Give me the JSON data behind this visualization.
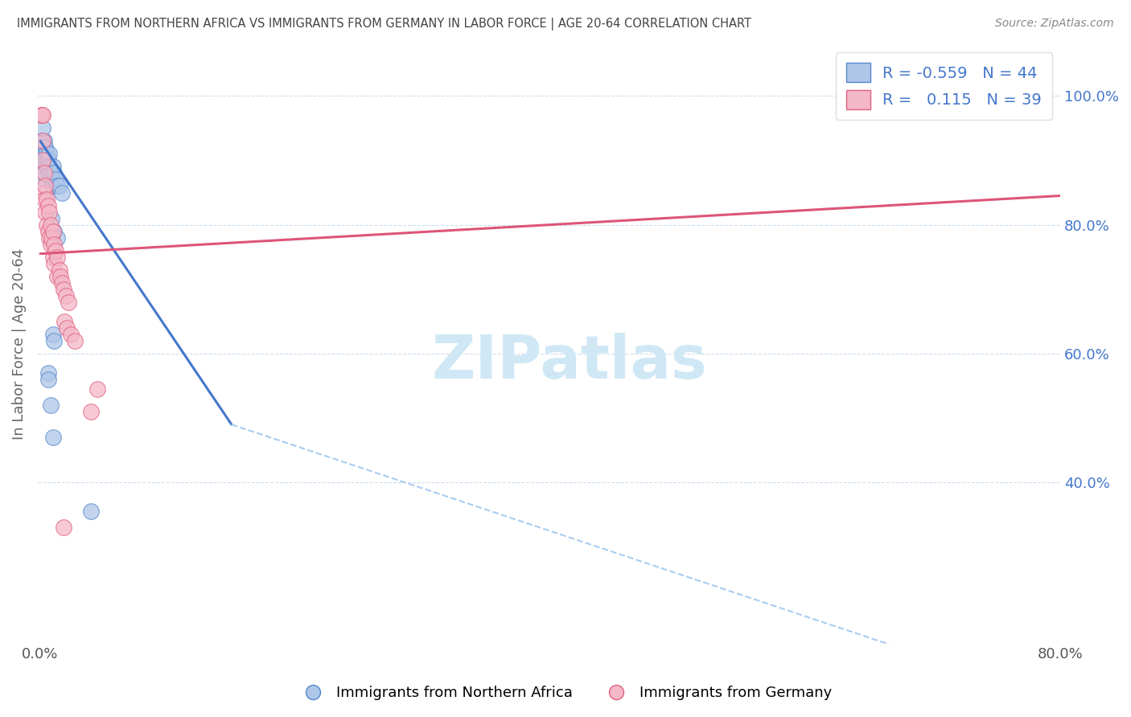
{
  "title": "IMMIGRANTS FROM NORTHERN AFRICA VS IMMIGRANTS FROM GERMANY IN LABOR FORCE | AGE 20-64 CORRELATION CHART",
  "source": "Source: ZipAtlas.com",
  "ylabel": "In Labor Force | Age 20-64",
  "legend1_label": "Immigrants from Northern Africa",
  "legend2_label": "Immigrants from Germany",
  "R1": "-0.559",
  "N1": "44",
  "R2": "0.115",
  "N2": "39",
  "blue_fill": "#aec6e8",
  "pink_fill": "#f4b8c8",
  "blue_edge": "#5588cc",
  "pink_edge": "#e06080",
  "blue_line_color": "#4477cc",
  "pink_line_color": "#dd5577",
  "dashed_line_color": "#aaccee",
  "title_color": "#444444",
  "source_color": "#888888",
  "watermark_color": "#d0e8f5",
  "blue_scatter": [
    [
      0.001,
      0.93
    ],
    [
      0.001,
      0.91
    ],
    [
      0.001,
      0.9
    ],
    [
      0.002,
      0.93
    ],
    [
      0.002,
      0.91
    ],
    [
      0.002,
      0.89
    ],
    [
      0.002,
      0.88
    ],
    [
      0.003,
      0.93
    ],
    [
      0.003,
      0.92
    ],
    [
      0.003,
      0.9
    ],
    [
      0.003,
      0.89
    ],
    [
      0.003,
      0.88
    ],
    [
      0.003,
      0.87
    ],
    [
      0.004,
      0.92
    ],
    [
      0.004,
      0.91
    ],
    [
      0.004,
      0.9
    ],
    [
      0.004,
      0.88
    ],
    [
      0.005,
      0.91
    ],
    [
      0.005,
      0.9
    ],
    [
      0.005,
      0.89
    ],
    [
      0.006,
      0.9
    ],
    [
      0.006,
      0.88
    ],
    [
      0.007,
      0.91
    ],
    [
      0.007,
      0.89
    ],
    [
      0.008,
      0.88
    ],
    [
      0.009,
      0.87
    ],
    [
      0.01,
      0.89
    ],
    [
      0.01,
      0.86
    ],
    [
      0.011,
      0.88
    ],
    [
      0.012,
      0.87
    ],
    [
      0.013,
      0.86
    ],
    [
      0.015,
      0.86
    ],
    [
      0.017,
      0.85
    ],
    [
      0.009,
      0.81
    ],
    [
      0.011,
      0.79
    ],
    [
      0.013,
      0.78
    ],
    [
      0.01,
      0.63
    ],
    [
      0.011,
      0.62
    ],
    [
      0.006,
      0.57
    ],
    [
      0.006,
      0.56
    ],
    [
      0.008,
      0.52
    ],
    [
      0.04,
      0.355
    ],
    [
      0.01,
      0.47
    ],
    [
      0.002,
      0.95
    ]
  ],
  "pink_scatter": [
    [
      0.001,
      0.97
    ],
    [
      0.001,
      0.97
    ],
    [
      0.002,
      0.93
    ],
    [
      0.002,
      0.9
    ],
    [
      0.003,
      0.88
    ],
    [
      0.003,
      0.85
    ],
    [
      0.003,
      0.84
    ],
    [
      0.004,
      0.86
    ],
    [
      0.004,
      0.82
    ],
    [
      0.005,
      0.84
    ],
    [
      0.005,
      0.8
    ],
    [
      0.006,
      0.83
    ],
    [
      0.006,
      0.79
    ],
    [
      0.007,
      0.82
    ],
    [
      0.007,
      0.78
    ],
    [
      0.008,
      0.8
    ],
    [
      0.008,
      0.77
    ],
    [
      0.009,
      0.78
    ],
    [
      0.01,
      0.79
    ],
    [
      0.01,
      0.75
    ],
    [
      0.011,
      0.77
    ],
    [
      0.011,
      0.74
    ],
    [
      0.012,
      0.76
    ],
    [
      0.013,
      0.75
    ],
    [
      0.013,
      0.72
    ],
    [
      0.015,
      0.73
    ],
    [
      0.016,
      0.72
    ],
    [
      0.017,
      0.71
    ],
    [
      0.018,
      0.7
    ],
    [
      0.02,
      0.69
    ],
    [
      0.022,
      0.68
    ],
    [
      0.019,
      0.65
    ],
    [
      0.021,
      0.64
    ],
    [
      0.024,
      0.63
    ],
    [
      0.027,
      0.62
    ],
    [
      0.045,
      0.545
    ],
    [
      0.018,
      0.33
    ],
    [
      0.04,
      0.51
    ],
    [
      0.002,
      0.97
    ]
  ],
  "blue_line_x": [
    0.0,
    0.15
  ],
  "blue_line_y": [
    0.93,
    0.49
  ],
  "pink_line_x": [
    0.0,
    0.8
  ],
  "pink_line_y": [
    0.755,
    0.845
  ],
  "dashed_line_x": [
    0.15,
    0.8
  ],
  "dashed_line_y": [
    0.49,
    0.06
  ],
  "xlim": [
    -0.002,
    0.8
  ],
  "ylim": [
    0.15,
    1.08
  ],
  "yticks": [
    0.4,
    0.6,
    0.8,
    1.0
  ],
  "ytick_labels": [
    "40.0%",
    "60.0%",
    "80.0%",
    "100.0%"
  ],
  "xticks": [
    0.0,
    0.8
  ],
  "xtick_labels": [
    "0.0%",
    "80.0%"
  ]
}
